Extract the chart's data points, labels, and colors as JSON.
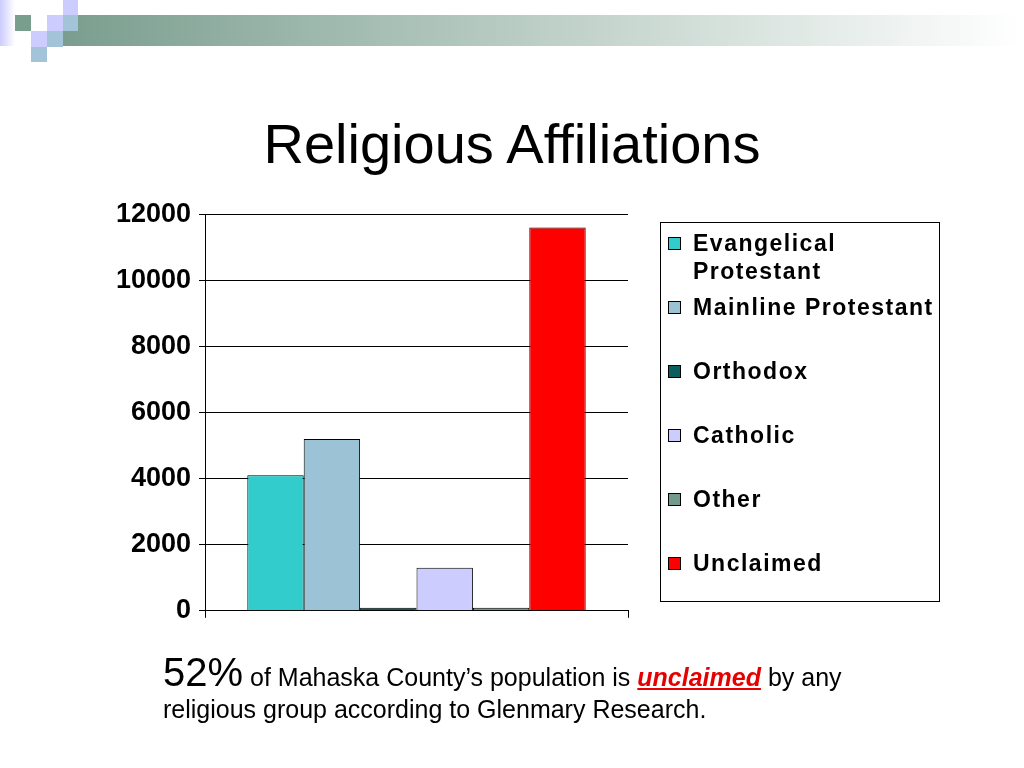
{
  "chart_data": {
    "type": "bar",
    "title": "Religious Affiliations",
    "categories": [
      null
    ],
    "series": [
      {
        "name": "Evangelical Protestant",
        "color": "#33cccc",
        "values": [
          4100
        ]
      },
      {
        "name": "Mainline Protestant",
        "color": "#9cc3d5",
        "values": [
          5200
        ]
      },
      {
        "name": "Orthodox",
        "color": "#0b5e5e",
        "values": [
          0
        ]
      },
      {
        "name": "Catholic",
        "color": "#ccccff",
        "values": [
          1300
        ]
      },
      {
        "name": "Other",
        "color": "#6f9a8c",
        "values": [
          0
        ]
      },
      {
        "name": "Unclaimed",
        "color": "#ff0000",
        "values": [
          11600
        ]
      }
    ],
    "ylim": [
      0,
      12000
    ],
    "yticks": [
      0,
      2000,
      4000,
      6000,
      8000,
      10000,
      12000
    ],
    "grid": "y",
    "legend": "right",
    "tick_labels": "y",
    "annotations": [
      "52%",
      "of Mahaska County’s population is",
      "unclaimed",
      "by any",
      "religious group according to Glenmary Research."
    ]
  }
}
